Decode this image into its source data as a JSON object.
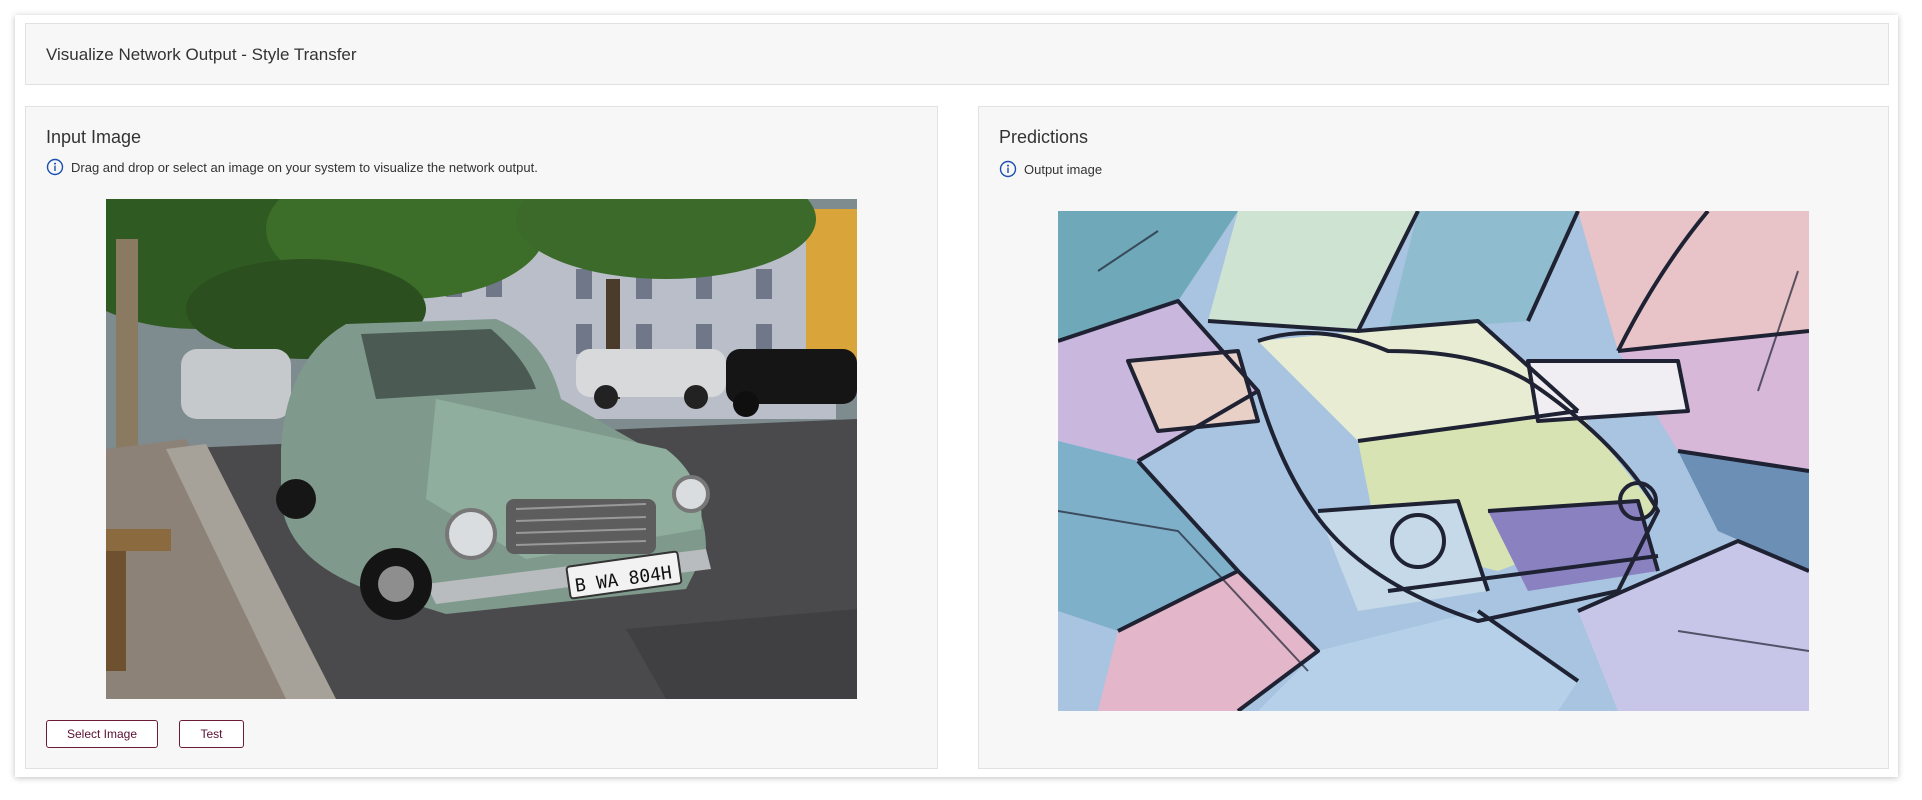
{
  "header": {
    "title": "Visualize Network Output - Style Transfer"
  },
  "input_panel": {
    "title": "Input Image",
    "hint": "Drag and drop or select an image on your system to visualize the network output.",
    "hint_icon": "info-icon",
    "image_alt": "Input image",
    "plate_text": "B WA 804H",
    "buttons": {
      "select_label": "Select Image",
      "test_label": "Test"
    }
  },
  "predictions_panel": {
    "title": "Predictions",
    "hint": "Output image",
    "hint_icon": "info-icon",
    "image_alt": "Output image"
  },
  "colors": {
    "accent": "#6a1b3a",
    "info_icon": "#1a4fb0",
    "panel_bg": "#f7f7f7"
  }
}
